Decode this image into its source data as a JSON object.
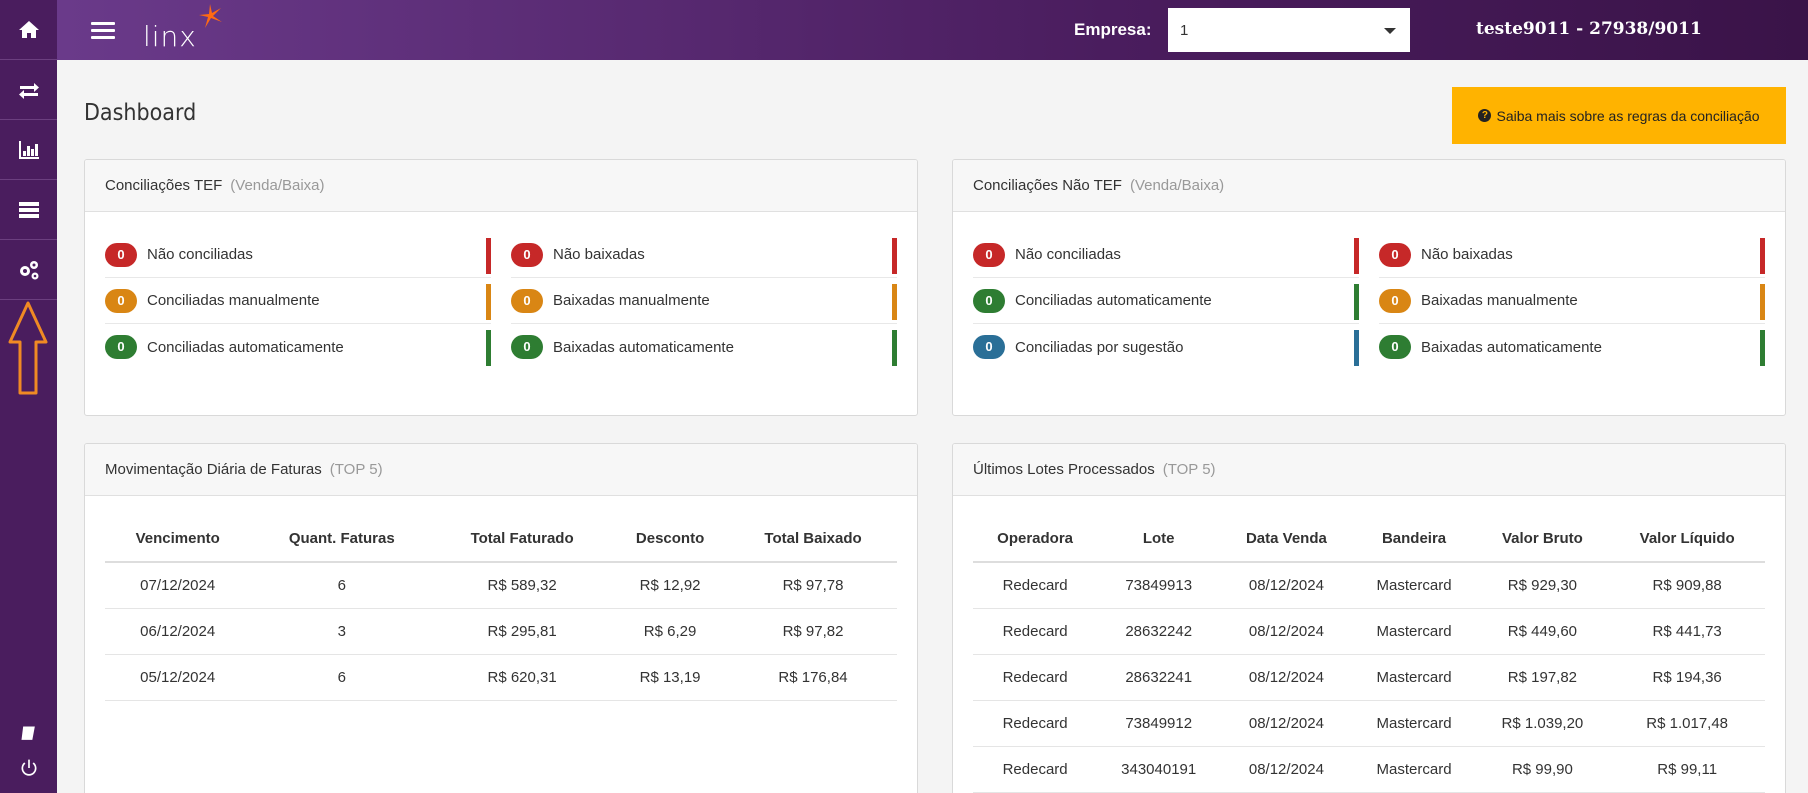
{
  "sidebar": {
    "items": [
      {
        "icon": "home-icon"
      },
      {
        "icon": "transfer-icon"
      },
      {
        "icon": "bar-chart-icon"
      },
      {
        "icon": "server-icon"
      },
      {
        "icon": "gears-icon"
      }
    ],
    "bottom": [
      {
        "icon": "book-icon"
      },
      {
        "icon": "power-icon"
      }
    ],
    "arrow_color": "#f08a24"
  },
  "topbar": {
    "logo": "linx",
    "empresa_label": "Empresa:",
    "empresa_value": "1",
    "user": "teste9011 - 27938/9011"
  },
  "page": {
    "title": "Dashboard",
    "help_button": "Saiba mais sobre as regras da conciliação"
  },
  "colors": {
    "red": "#c62828",
    "orange": "#d98614",
    "green": "#2e7d32",
    "blue": "#2a6f97",
    "help": "#ffb300"
  },
  "tef": {
    "title": "Conciliações TEF",
    "subtitle": "(Venda/Baixa)",
    "left": [
      {
        "count": "0",
        "label": "Não conciliadas",
        "color": "#c62828"
      },
      {
        "count": "0",
        "label": "Conciliadas manualmente",
        "color": "#d98614"
      },
      {
        "count": "0",
        "label": "Conciliadas automaticamente",
        "color": "#2e7d32"
      }
    ],
    "right": [
      {
        "count": "0",
        "label": "Não baixadas",
        "color": "#c62828"
      },
      {
        "count": "0",
        "label": "Baixadas manualmente",
        "color": "#d98614"
      },
      {
        "count": "0",
        "label": "Baixadas automaticamente",
        "color": "#2e7d32"
      }
    ]
  },
  "naotef": {
    "title": "Conciliações Não TEF",
    "subtitle": "(Venda/Baixa)",
    "left": [
      {
        "count": "0",
        "label": "Não conciliadas",
        "color": "#c62828"
      },
      {
        "count": "0",
        "label": "Conciliadas automaticamente",
        "color": "#2e7d32"
      },
      {
        "count": "0",
        "label": "Conciliadas por sugestão",
        "color": "#2a6f97"
      }
    ],
    "right": [
      {
        "count": "0",
        "label": "Não baixadas",
        "color": "#c62828"
      },
      {
        "count": "0",
        "label": "Baixadas manualmente",
        "color": "#d98614"
      },
      {
        "count": "0",
        "label": "Baixadas automaticamente",
        "color": "#2e7d32"
      }
    ]
  },
  "faturas": {
    "title": "Movimentação Diária de Faturas",
    "subtitle": "(TOP 5)",
    "columns": [
      "Vencimento",
      "Quant. Faturas",
      "Total Faturado",
      "Desconto",
      "Total Baixado"
    ],
    "rows": [
      [
        "07/12/2024",
        "6",
        "R$ 589,32",
        "R$ 12,92",
        "R$ 97,78"
      ],
      [
        "06/12/2024",
        "3",
        "R$ 295,81",
        "R$ 6,29",
        "R$ 97,82"
      ],
      [
        "05/12/2024",
        "6",
        "R$ 620,31",
        "R$ 13,19",
        "R$ 176,84"
      ]
    ]
  },
  "lotes": {
    "title": "Últimos Lotes Processados",
    "subtitle": "(TOP 5)",
    "columns": [
      "Operadora",
      "Lote",
      "Data Venda",
      "Bandeira",
      "Valor Bruto",
      "Valor Líquido"
    ],
    "rows": [
      [
        "Redecard",
        "73849913",
        "08/12/2024",
        "Mastercard",
        "R$ 929,30",
        "R$ 909,88"
      ],
      [
        "Redecard",
        "28632242",
        "08/12/2024",
        "Mastercard",
        "R$ 449,60",
        "R$ 441,73"
      ],
      [
        "Redecard",
        "28632241",
        "08/12/2024",
        "Mastercard",
        "R$ 197,82",
        "R$ 194,36"
      ],
      [
        "Redecard",
        "73849912",
        "08/12/2024",
        "Mastercard",
        "R$ 1.039,20",
        "R$ 1.017,48"
      ],
      [
        "Redecard",
        "343040191",
        "08/12/2024",
        "Mastercard",
        "R$ 99,90",
        "R$ 99,11"
      ]
    ]
  }
}
